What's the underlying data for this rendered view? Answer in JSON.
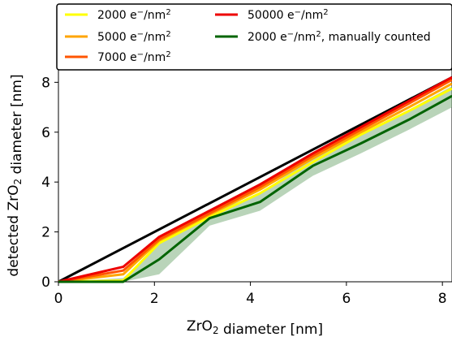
{
  "chart_data": {
    "type": "line",
    "xlabel": "ZrO2 diameter [nm]",
    "ylabel": "detected ZrO2 diameter [nm]",
    "xlim": [
      0,
      8.2
    ],
    "ylim": [
      0,
      8.5
    ],
    "x_ticks": [
      "0",
      "2",
      "4",
      "6",
      "8"
    ],
    "y_ticks": [
      "0",
      "2",
      "4",
      "6",
      "8"
    ],
    "grid": false,
    "legend_placement": "top, above plot, two columns",
    "reference_line": {
      "name": "",
      "color": "#000000",
      "points": [
        [
          0,
          0
        ],
        [
          8.2,
          8.2
        ]
      ]
    },
    "band": {
      "color": "#7fb07f",
      "opacity": 0.55,
      "x": [
        0,
        1.35,
        2.1,
        3.15,
        4.2,
        5.3,
        6.3,
        7.3,
        8.2
      ],
      "lower": [
        0,
        0,
        0.3,
        2.25,
        2.85,
        4.25,
        5.15,
        6.1,
        7.0
      ],
      "upper": [
        0,
        0.15,
        1.5,
        2.75,
        3.55,
        5.0,
        5.95,
        6.9,
        7.85
      ]
    },
    "series": [
      {
        "name": "2000 e⁻/nm²",
        "color": "#ffff00",
        "x": [
          0,
          1.35,
          2.1,
          3.15,
          4.2,
          5.3,
          6.3,
          7.3,
          8.2
        ],
        "y": [
          0,
          0.05,
          1.55,
          2.6,
          3.55,
          4.8,
          5.9,
          6.85,
          7.75
        ]
      },
      {
        "name": "5000 e⁻/nm²",
        "color": "#ffa500",
        "x": [
          0,
          1.35,
          2.1,
          3.15,
          4.2,
          5.3,
          6.3,
          7.3,
          8.2
        ],
        "y": [
          0,
          0.3,
          1.65,
          2.7,
          3.7,
          4.95,
          6.0,
          7.0,
          7.95
        ]
      },
      {
        "name": "7000 e⁻/nm²",
        "color": "#ff5500",
        "x": [
          0,
          1.35,
          2.1,
          3.15,
          4.2,
          5.3,
          6.3,
          7.3,
          8.2
        ],
        "y": [
          0,
          0.45,
          1.7,
          2.75,
          3.8,
          5.05,
          6.1,
          7.15,
          8.1
        ]
      },
      {
        "name": "50000 e⁻/nm²",
        "color": "#ee0000",
        "x": [
          0,
          1.35,
          2.1,
          3.15,
          4.2,
          5.3,
          6.3,
          7.3,
          8.2
        ],
        "y": [
          0,
          0.6,
          1.8,
          2.85,
          3.9,
          5.15,
          6.2,
          7.25,
          8.2
        ]
      },
      {
        "name": "2000 e⁻/nm², manually counted",
        "color": "#006400",
        "x": [
          0,
          1.35,
          2.1,
          3.15,
          4.2,
          5.3,
          6.3,
          7.3,
          8.2
        ],
        "y": [
          0,
          0,
          0.9,
          2.55,
          3.2,
          4.65,
          5.55,
          6.5,
          7.45
        ]
      }
    ]
  }
}
